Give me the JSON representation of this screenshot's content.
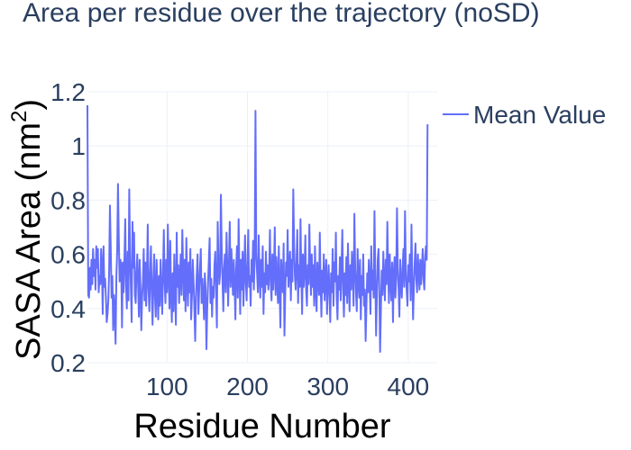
{
  "chart_data": {
    "type": "line",
    "title": "Area per residue over the trajectory (noSD)",
    "xlabel": "Residue Number",
    "ylabel": "SASA Area (nm²)",
    "ylabel_base": "SASA Area (nm",
    "ylabel_sup": "2",
    "ylabel_close": ")",
    "xlim": [
      1,
      436
    ],
    "ylim": [
      0.2,
      1.2
    ],
    "xticks": [
      100,
      200,
      300,
      400
    ],
    "xtick_labels": [
      "100",
      "200",
      "300",
      "400"
    ],
    "yticks": [
      0.2,
      0.4,
      0.6,
      0.8,
      1.0,
      1.2
    ],
    "ytick_labels": [
      "0.2",
      "0.4",
      "0.6",
      "0.8",
      "1",
      "1.2"
    ],
    "grid": true,
    "legend_position": "top-right",
    "series": [
      {
        "name": "Mean Value",
        "color": "#636efa",
        "x_start": 1,
        "x_step": 1,
        "y": [
          1.15,
          0.45,
          0.44,
          0.55,
          0.47,
          0.58,
          0.49,
          0.62,
          0.52,
          0.58,
          0.47,
          0.63,
          0.55,
          0.62,
          0.46,
          0.52,
          0.49,
          0.62,
          0.56,
          0.38,
          0.63,
          0.48,
          0.51,
          0.44,
          0.35,
          0.38,
          0.43,
          0.54,
          0.78,
          0.62,
          0.44,
          0.52,
          0.32,
          0.45,
          0.4,
          0.27,
          0.52,
          0.61,
          0.86,
          0.66,
          0.5,
          0.58,
          0.56,
          0.33,
          0.57,
          0.46,
          0.58,
          0.73,
          0.49,
          0.4,
          0.61,
          0.43,
          0.84,
          0.6,
          0.48,
          0.35,
          0.72,
          0.55,
          0.68,
          0.45,
          0.42,
          0.54,
          0.6,
          0.49,
          0.37,
          0.58,
          0.47,
          0.32,
          0.44,
          0.5,
          0.62,
          0.43,
          0.57,
          0.41,
          0.52,
          0.71,
          0.47,
          0.39,
          0.53,
          0.63,
          0.45,
          0.34,
          0.51,
          0.6,
          0.44,
          0.37,
          0.58,
          0.48,
          0.36,
          0.52,
          0.41,
          0.58,
          0.48,
          0.38,
          0.53,
          0.69,
          0.5,
          0.42,
          0.58,
          0.46,
          0.71,
          0.53,
          0.4,
          0.65,
          0.46,
          0.35,
          0.53,
          0.39,
          0.6,
          0.47,
          0.34,
          0.68,
          0.48,
          0.56,
          0.42,
          0.51,
          0.6,
          0.45,
          0.69,
          0.55,
          0.43,
          0.58,
          0.39,
          0.66,
          0.5,
          0.41,
          0.57,
          0.46,
          0.62,
          0.36,
          0.45,
          0.58,
          0.5,
          0.4,
          0.28,
          0.44,
          0.53,
          0.6,
          0.38,
          0.47,
          0.55,
          0.62,
          0.42,
          0.51,
          0.45,
          0.36,
          0.53,
          0.47,
          0.25,
          0.4,
          0.49,
          0.58,
          0.66,
          0.42,
          0.51,
          0.37,
          0.48,
          0.44,
          0.56,
          0.61,
          0.47,
          0.33,
          0.72,
          0.58,
          0.49,
          0.53,
          0.82,
          0.62,
          0.5,
          0.39,
          0.55,
          0.6,
          0.46,
          0.68,
          0.55,
          0.41,
          0.57,
          0.72,
          0.48,
          0.62,
          0.53,
          0.45,
          0.58,
          0.49,
          0.36,
          0.55,
          0.63,
          0.44,
          0.73,
          0.54,
          0.38,
          0.58,
          0.47,
          0.61,
          0.41,
          0.53,
          0.67,
          0.5,
          0.43,
          0.56,
          0.69,
          0.48,
          0.52,
          0.41,
          0.58,
          0.5,
          0.65,
          0.47,
          0.59,
          1.13,
          0.6,
          0.53,
          0.46,
          0.67,
          0.52,
          0.44,
          0.58,
          0.48,
          0.63,
          0.38,
          0.53,
          0.46,
          0.61,
          0.49,
          0.56,
          0.47,
          0.53,
          0.69,
          0.49,
          0.43,
          0.6,
          0.47,
          0.54,
          0.7,
          0.45,
          0.59,
          0.5,
          0.42,
          0.63,
          0.47,
          0.33,
          0.58,
          0.5,
          0.46,
          0.64,
          0.3,
          0.45,
          0.57,
          0.52,
          0.69,
          0.48,
          0.56,
          0.61,
          0.43,
          0.58,
          0.5,
          0.84,
          0.64,
          0.52,
          0.47,
          0.57,
          0.69,
          0.42,
          0.56,
          0.48,
          0.73,
          0.52,
          0.38,
          0.6,
          0.48,
          0.54,
          0.67,
          0.47,
          0.41,
          0.56,
          0.49,
          0.71,
          0.55,
          0.45,
          0.6,
          0.48,
          0.56,
          0.41,
          0.63,
          0.48,
          0.39,
          0.57,
          0.52,
          0.45,
          0.68,
          0.49,
          0.37,
          0.54,
          0.46,
          0.6,
          0.43,
          0.52,
          0.58,
          0.38,
          0.49,
          0.56,
          0.45,
          0.35,
          0.53,
          0.46,
          0.62,
          0.41,
          0.57,
          0.5,
          0.68,
          0.44,
          0.36,
          0.52,
          0.47,
          0.59,
          0.43,
          0.55,
          0.69,
          0.48,
          0.37,
          0.53,
          0.45,
          0.59,
          0.42,
          0.64,
          0.5,
          0.39,
          0.56,
          0.47,
          0.61,
          0.53,
          0.41,
          0.75,
          0.55,
          0.46,
          0.39,
          0.62,
          0.5,
          0.44,
          0.58,
          0.36,
          0.52,
          0.45,
          0.6,
          0.41,
          0.47,
          0.28,
          0.41,
          0.53,
          0.46,
          0.58,
          0.49,
          0.38,
          0.63,
          0.47,
          0.54,
          0.44,
          0.76,
          0.52,
          0.3,
          0.45,
          0.58,
          0.62,
          0.47,
          0.24,
          0.4,
          0.54,
          0.45,
          0.61,
          0.5,
          0.43,
          0.58,
          0.49,
          0.72,
          0.54,
          0.42,
          0.6,
          0.5,
          0.43,
          0.57,
          0.35,
          0.52,
          0.59,
          0.44,
          0.51,
          0.77,
          0.55,
          0.47,
          0.37,
          0.58,
          0.49,
          0.44,
          0.55,
          0.62,
          0.48,
          0.76,
          0.54,
          0.47,
          0.41,
          0.56,
          0.5,
          0.6,
          0.43,
          0.71,
          0.52,
          0.36,
          0.48,
          0.57,
          0.64,
          0.51,
          0.46,
          0.6,
          0.53,
          0.47,
          0.58,
          0.49,
          0.55,
          0.62,
          0.51,
          0.47,
          0.59,
          0.63,
          0.58,
          1.08
        ]
      }
    ]
  }
}
